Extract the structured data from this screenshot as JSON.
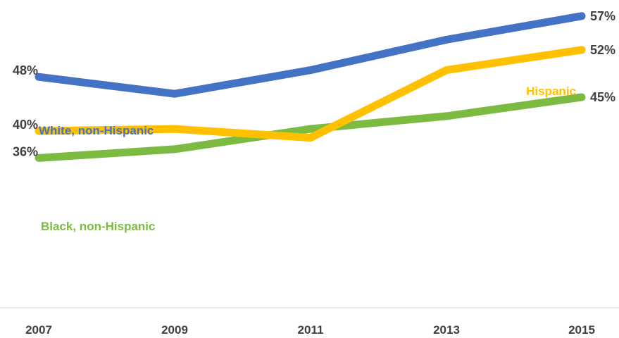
{
  "chart_data": {
    "type": "line",
    "categories": [
      "2007",
      "2009",
      "2011",
      "2013",
      "2015"
    ],
    "ylim": [
      20,
      60
    ],
    "grid": false,
    "series": [
      {
        "name": "White, non-Hispanic",
        "color": "#4472C4",
        "values": [
          48,
          45.5,
          49,
          53.5,
          57
        ],
        "start_label": "48%",
        "end_label": "57%"
      },
      {
        "name": "Hispanic",
        "color": "#FFC000",
        "values": [
          40,
          40.3,
          39,
          49,
          52
        ],
        "start_label": "40%",
        "end_label": "52%"
      },
      {
        "name": "Black, non-Hispanic",
        "color": "#7CBB42",
        "values": [
          36,
          37.3,
          40.3,
          42.2,
          45
        ],
        "start_label": "36%",
        "end_label": "45%"
      }
    ]
  }
}
